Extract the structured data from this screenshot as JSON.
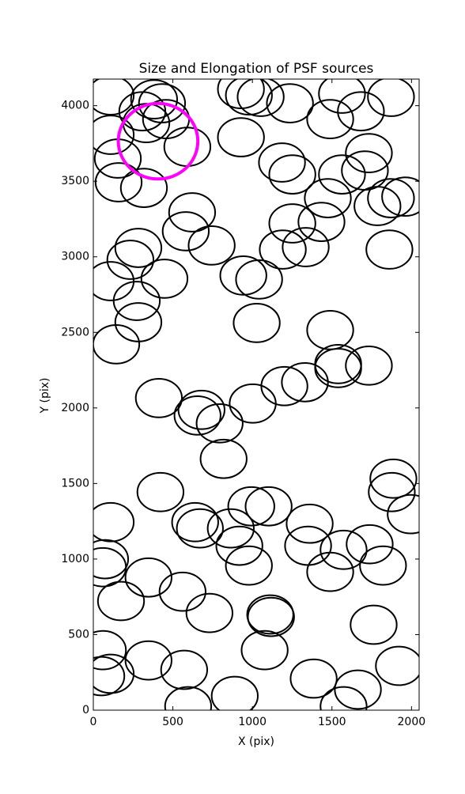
{
  "chart_data": {
    "type": "ellipse-scatter",
    "title": "Size and Elongation of PSF sources",
    "x_label": "X (pix)",
    "y_label": "Y (pix)",
    "xlim": [
      0,
      2048
    ],
    "ylim": [
      0,
      4176
    ],
    "xticks": [
      0,
      500,
      1000,
      1500,
      2000
    ],
    "yticks": [
      0,
      500,
      1000,
      1500,
      2000,
      2500,
      3000,
      3500,
      4000
    ],
    "series": [
      {
        "color": "#000000",
        "width": 290,
        "height": 255,
        "x": [
          109,
          308,
          382,
          432,
          457,
          333,
          109,
          154,
          159,
          318,
          591,
          621,
          581,
          744,
          283,
          233,
          109,
          447,
          273,
          283,
          144,
          928,
          928,
          978,
          1052,
          1236,
          1186,
          1251,
          1489,
          1563,
          1682,
          1871,
          1732,
          1707,
          1563,
          1474,
          1434,
          1251,
          1335,
          1191,
          1786,
          1871,
          1960,
          1861,
          943,
          1042,
          1027,
          1489,
          1539,
          1539,
          1732,
          1330,
          1201,
          1002,
          412,
          680,
          655,
          794,
          819,
          422,
          1886,
          1876,
          1995,
          109,
          993,
          1102,
          640,
          670,
          864,
          918,
          978,
          1360,
          1350,
          1573,
          1737,
          1821,
          1489,
          74,
          60,
          347,
          561,
          174,
          730,
          1112,
          1117,
          1762,
          1077,
          60,
          347,
          571,
          109,
          50,
          1385,
          1921,
          1663,
          1573,
          596,
          889
        ],
        "y": [
          4068,
          3963,
          4042,
          4016,
          3911,
          3885,
          3807,
          3650,
          3493,
          3456,
          3728,
          3294,
          3169,
          3075,
          3059,
          2980,
          2839,
          2855,
          2708,
          2567,
          2421,
          3791,
          4110,
          4068,
          4058,
          4016,
          3624,
          3545,
          3911,
          4079,
          3963,
          4058,
          3686,
          3571,
          3545,
          3388,
          3231,
          3221,
          3064,
          3048,
          3336,
          3388,
          3398,
          3048,
          2876,
          2850,
          2562,
          2515,
          2290,
          2264,
          2280,
          2170,
          2144,
          2029,
          2065,
          1987,
          1950,
          1898,
          1663,
          1443,
          1532,
          1443,
          1297,
          1244,
          1349,
          1349,
          1244,
          1203,
          1203,
          1088,
          957,
          1234,
          1088,
          1061,
          1098,
          957,
          915,
          999,
          946,
          878,
          784,
          722,
          643,
          633,
          617,
          565,
          397,
          397,
          329,
          267,
          241,
          225,
          209,
          293,
          136,
          26,
          26,
          94
        ]
      },
      {
        "color": "#ff00ff",
        "width": 500,
        "height": 500,
        "x": [
          407
        ],
        "y": [
          3765
        ]
      }
    ]
  }
}
